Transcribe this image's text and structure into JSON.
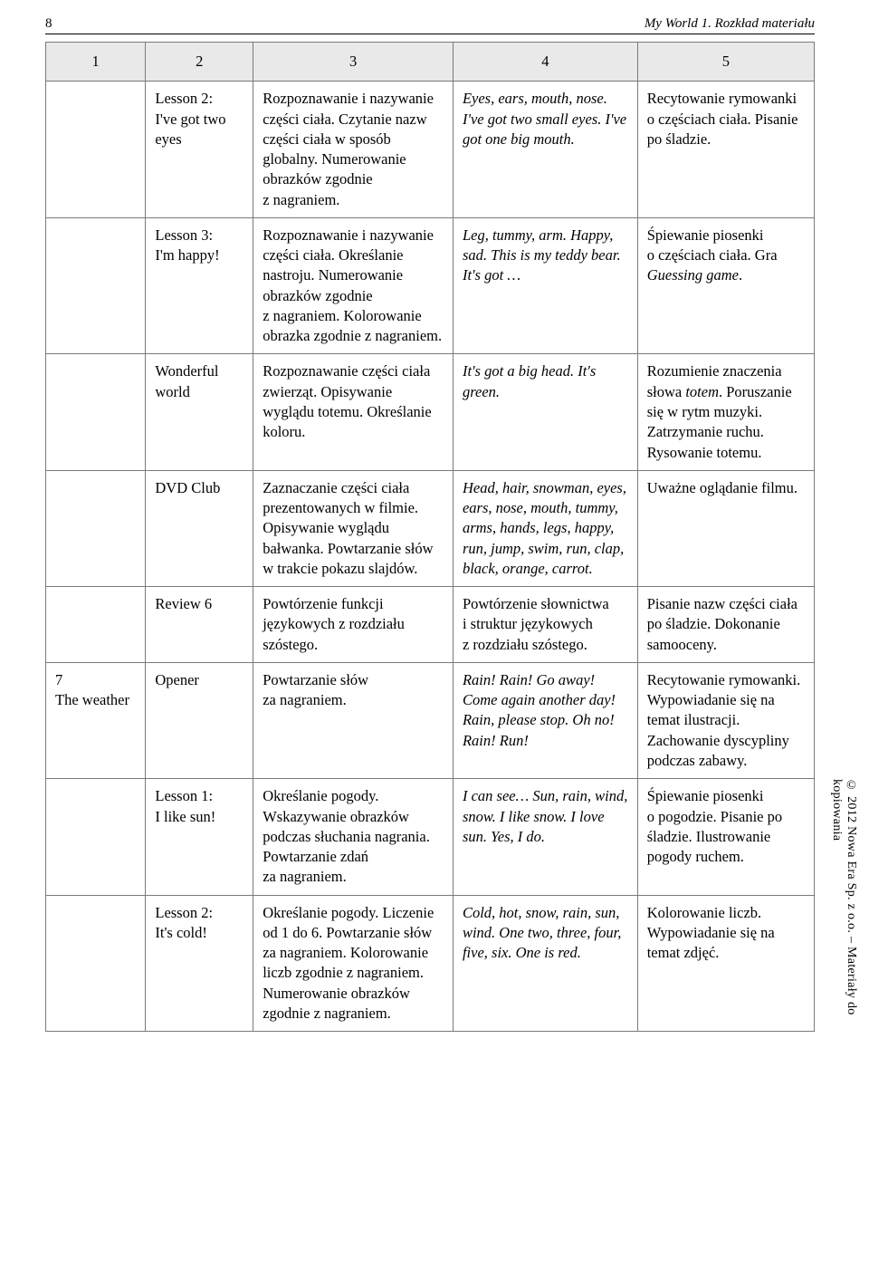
{
  "header": {
    "page_number": "8",
    "running_title": "My World 1. Rozkład materiału"
  },
  "side_note": "© 2012 Nowa Era Sp. z o.o. – Materiały do kopiowania",
  "columns": [
    "1",
    "2",
    "3",
    "4",
    "5"
  ],
  "rows": [
    {
      "c1": "",
      "c2_html": "Lesson 2:<br>I've got two eyes",
      "c3_html": "Rozpoznawanie i&nbsp;nazywanie części ciała. Czytanie nazw części ciała w&nbsp;sposób globalny. Numerowanie obrazków zgodnie z&nbsp;nagraniem.",
      "c4_html": "<span class='italic'>Eyes, ears, mouth, nose. I've got two small eyes. I've got one big mouth.</span>",
      "c5_html": "Recytowanie rymowanki o&nbsp;częściach ciała. Pisanie po śladzie."
    },
    {
      "c1": "",
      "c2_html": "Lesson 3:<br>I'm happy!",
      "c3_html": "Rozpoznawanie i&nbsp;nazywanie części ciała. Określanie nastroju. Numerowanie obrazków zgodnie z&nbsp;nagraniem. Kolorowanie obrazka zgodnie z&nbsp;nagraniem.",
      "c4_html": "<span class='italic'>Leg, tummy, arm. Happy, sad. This is my teddy bear. It's got …</span>",
      "c5_html": "Śpiewanie piosenki o&nbsp;częściach ciała. Gra <span class='italic'>Guessing game</span>."
    },
    {
      "c1": "",
      "c2_html": "Wonderful world",
      "c3_html": "Rozpoznawanie części ciała zwierząt. Opisywanie wyglądu totemu. Określanie koloru.",
      "c4_html": "<span class='italic'>It's got a big head. It's green.</span>",
      "c5_html": "Rozumienie znaczenia słowa <span class='italic'>totem</span>. Poruszanie się w&nbsp;rytm muzyki. Zatrzymanie ruchu. Rysowanie totemu."
    },
    {
      "c1": "",
      "c2_html": "DVD Club",
      "c3_html": "Zaznaczanie części ciała prezentowanych w&nbsp;filmie. Opisywanie wyglądu bałwanka. Powtarzanie słów w&nbsp;trakcie pokazu slajdów.",
      "c4_html": "<span class='italic'>Head, hair, snowman, eyes, ears, nose, mouth, tummy, arms, hands, legs, happy, run, jump, swim, run, clap, black, orange, carrot.</span>",
      "c5_html": "Uważne oglądanie filmu."
    },
    {
      "c1": "",
      "c2_html": "Review 6",
      "c3_html": "Powtórzenie funkcji językowych z&nbsp;rozdziału szóstego.",
      "c4_html": "Powtórzenie słownictwa i&nbsp;struktur językowych z&nbsp;rozdziału szóstego.",
      "c5_html": "Pisanie nazw części ciała po śladzie. Dokonanie samooceny."
    },
    {
      "c1_html": "7<br>The weather",
      "c2_html": "Opener",
      "c3_html": "Powtarzanie słów za&nbsp;nagraniem.",
      "c4_html": "<span class='italic'>Rain! Rain! Go away! Come again another day! Rain, please stop. Oh&nbsp;no! Rain! Run!</span>",
      "c5_html": "Recytowanie rymowanki. Wypowiadanie się na temat ilustracji. Zachowanie dyscypliny podczas zabawy."
    },
    {
      "c1": "",
      "c2_html": "Lesson 1:<br>I like sun!",
      "c3_html": "Określanie pogody. Wskazywanie obrazków podczas słuchania nagrania. Powtarzanie zdań za&nbsp;nagraniem.",
      "c4_html": "<span class='italic'>I can see… Sun, rain, wind, snow. I like snow. I&nbsp;love sun. Yes, I do.</span>",
      "c5_html": "Śpiewanie piosenki o&nbsp;pogodzie. Pisanie po śladzie. Ilustrowanie pogody ruchem."
    },
    {
      "c1": "",
      "c2_html": "Lesson 2:<br>It's cold!",
      "c3_html": "Określanie pogody. Liczenie od 1 do 6. Powtarzanie słów za&nbsp;nagraniem. Kolorowanie liczb zgodnie z&nbsp;nagraniem. Numerowanie obrazków zgodnie z&nbsp;nagraniem.",
      "c4_html": "<span class='italic'>Cold, hot, snow, rain, sun, wind. One two, three, four, five, six. One is red.</span>",
      "c5_html": "Kolorowanie liczb. Wypowiadanie się na temat zdjęć."
    }
  ]
}
